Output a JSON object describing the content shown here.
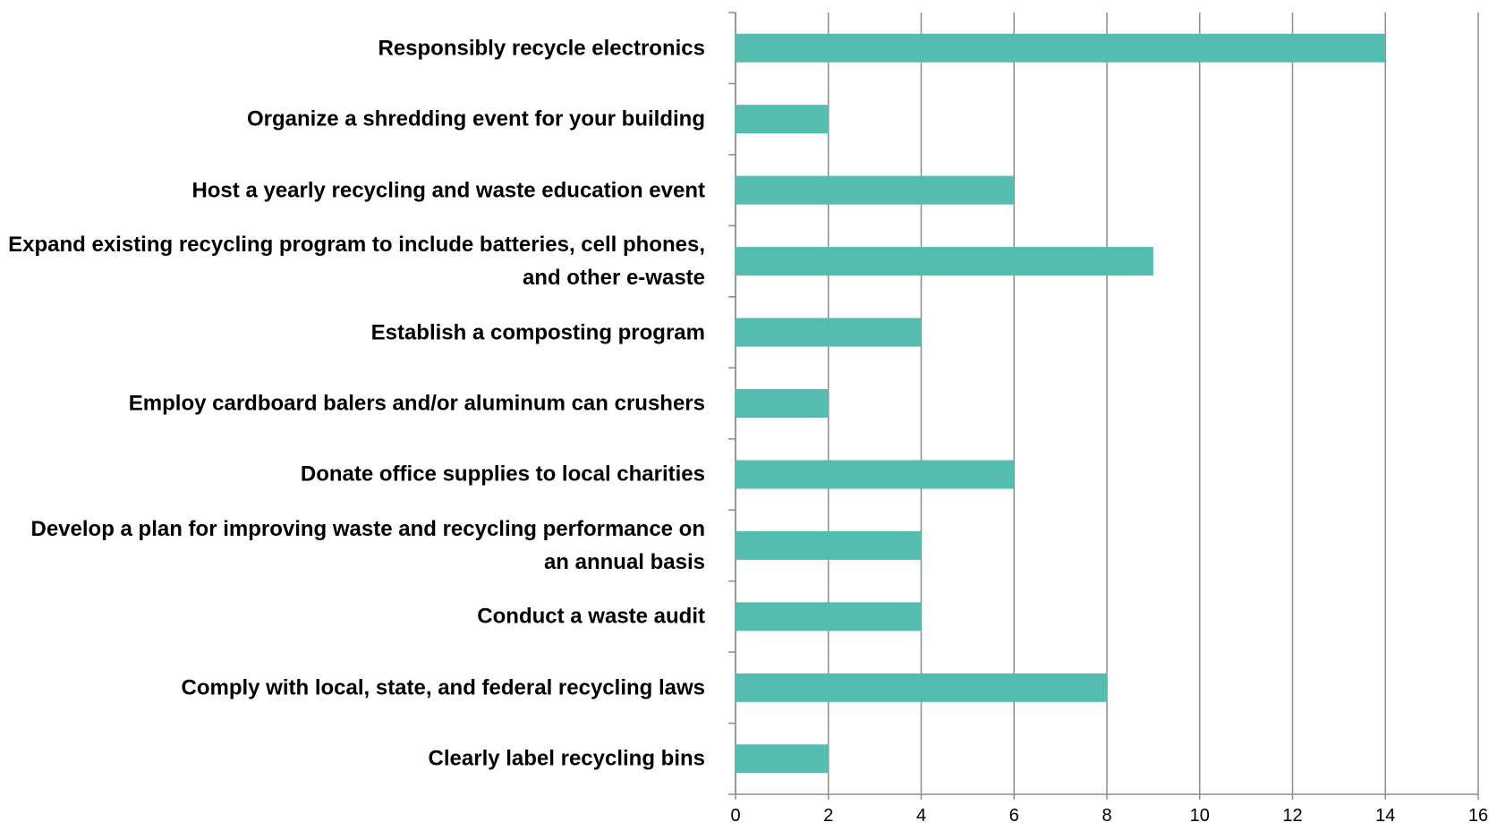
{
  "chart_data": {
    "type": "bar",
    "orientation": "horizontal",
    "categories": [
      "Responsibly recycle electronics",
      "Organize a shredding event for your building",
      "Host a yearly recycling and waste education event",
      "Expand existing recycling program to include batteries, cell phones, and other e-waste",
      "Establish a composting program",
      "Employ cardboard balers and/or aluminum can crushers",
      "Donate office supplies to local charities",
      "Develop a plan for improving waste and recycling performance on an annual basis",
      "Conduct a waste audit",
      "Comply with local, state, and federal recycling laws",
      "Clearly label recycling bins"
    ],
    "values": [
      14,
      2,
      6,
      9,
      4,
      2,
      6,
      4,
      4,
      8,
      2
    ],
    "color": "#55bdb0",
    "xlim": [
      0,
      16
    ],
    "xticks": [
      0,
      2,
      4,
      6,
      8,
      10,
      12,
      14,
      16
    ],
    "grid": true
  }
}
